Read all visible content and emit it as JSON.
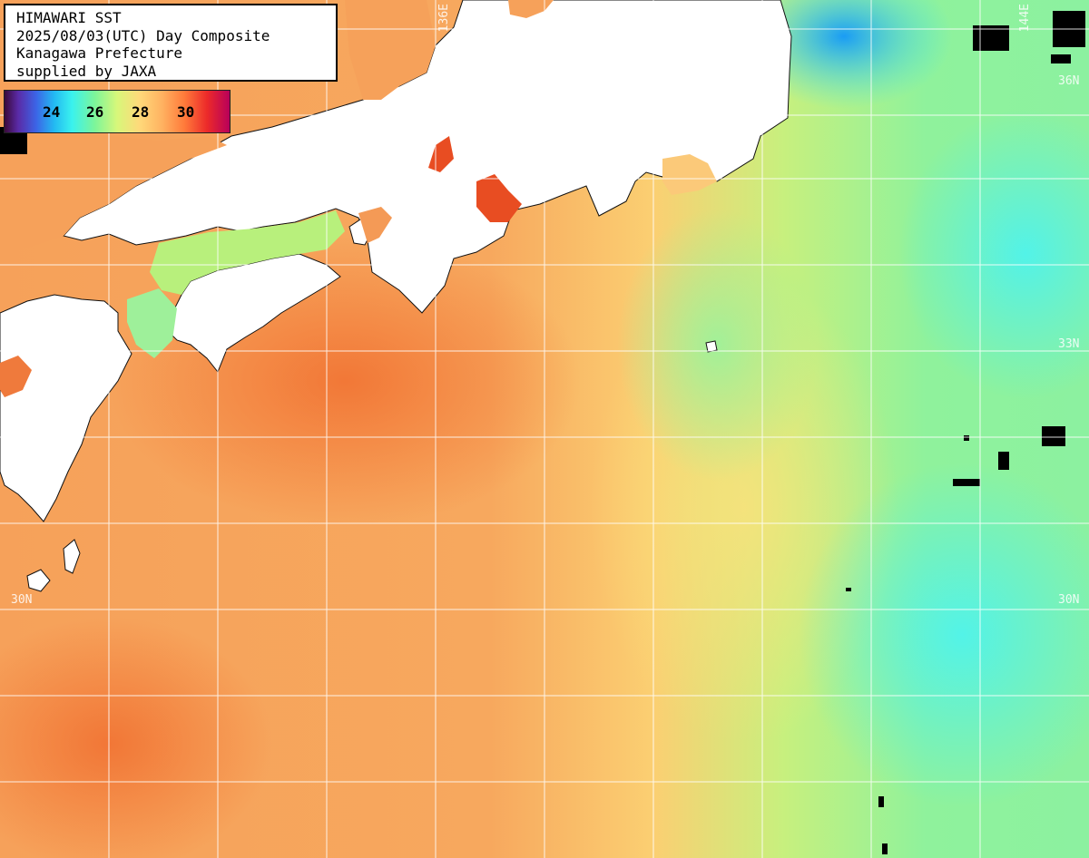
{
  "header": {
    "line1": "HIMAWARI SST",
    "line2": "2025/08/03(UTC) Day Composite",
    "line3": "Kanagawa Prefecture",
    "line4": "supplied by JAXA"
  },
  "colorbar": {
    "ticks": [
      "24",
      "26",
      "28",
      "30"
    ],
    "colors": [
      "#3a0a3a",
      "#5a2aa6",
      "#3c64e6",
      "#23b9f2",
      "#3af2ee",
      "#7cf59a",
      "#d7f77a",
      "#ffd97a",
      "#ffb261",
      "#ff7a3a",
      "#ec2a2a",
      "#b8005a"
    ]
  },
  "grid_labels": {
    "lon_136": "136E",
    "lon_144": "144E",
    "lat_36": "36N",
    "lat_33": "33N",
    "lat_30_left": "30N",
    "lat_30_right": "30N"
  },
  "palette": {
    "land": "#ffffff",
    "warm_sea": "#f7a35c",
    "hot_sea": "#f06a2c",
    "cool_sea": "#9ff29a",
    "cold_sea": "#4cf6ee",
    "cloud": "#000000",
    "grid": "#ffffff"
  }
}
